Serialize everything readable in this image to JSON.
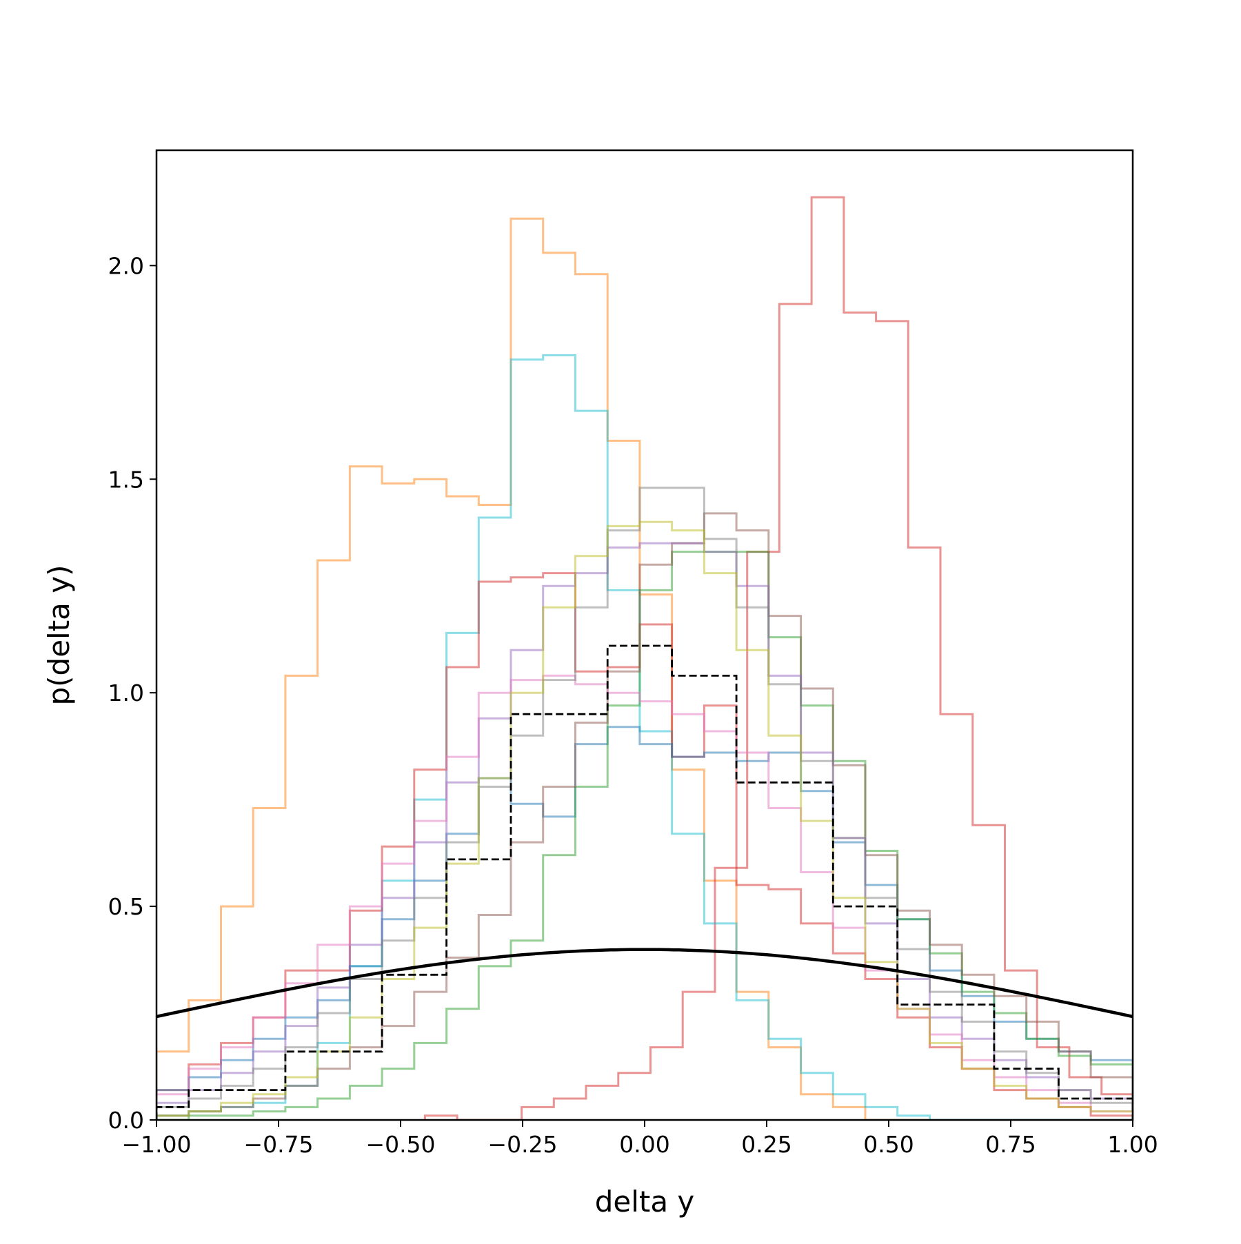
{
  "chart_data": {
    "type": "histogram-step",
    "xlabel": "delta y",
    "ylabel": "p(delta y)",
    "xlim": [
      -1.0,
      1.0
    ],
    "ylim": [
      0.0,
      2.27
    ],
    "grid": false,
    "legend": "none",
    "xticks": [
      -1.0,
      -0.75,
      -0.5,
      -0.25,
      0.0,
      0.25,
      0.5,
      0.75,
      1.0
    ],
    "xtick_labels": [
      "−1.00",
      "−0.75",
      "−0.50",
      "−0.25",
      "0.00",
      "0.25",
      "0.50",
      "0.75",
      "1.00"
    ],
    "yticks": [
      0.0,
      0.5,
      1.0,
      1.5,
      2.0
    ],
    "ytick_labels": [
      "0.0",
      "0.5",
      "1.0",
      "1.5",
      "2.0"
    ],
    "series": [
      {
        "color": "#ff7f0e",
        "style": "solid",
        "edges": [
          -1.0,
          -0.934,
          -0.868,
          -0.802,
          -0.736,
          -0.67,
          -0.604,
          -0.538,
          -0.472,
          -0.406,
          -0.34,
          -0.274,
          -0.208,
          -0.142,
          -0.076,
          -0.01,
          0.056,
          0.122,
          0.188,
          0.254,
          0.32,
          0.386,
          0.452,
          0.518,
          0.584
        ],
        "values": [
          0.16,
          0.28,
          0.5,
          0.73,
          1.04,
          1.31,
          1.53,
          1.49,
          1.5,
          1.46,
          1.44,
          2.11,
          2.03,
          1.98,
          1.59,
          1.23,
          0.82,
          0.56,
          0.3,
          0.17,
          0.06,
          0.03,
          0.0,
          0.0
        ]
      },
      {
        "color": "#d62728",
        "style": "solid",
        "edges": [
          -0.45,
          -0.384,
          -0.318,
          -0.252,
          -0.186,
          -0.12,
          -0.054,
          0.012,
          0.078,
          0.144,
          0.21,
          0.276,
          0.342,
          0.408,
          0.474,
          0.54,
          0.606,
          0.672,
          0.738,
          0.804,
          0.87,
          0.936,
          1.0
        ],
        "values": [
          0.01,
          0.0,
          0.0,
          0.03,
          0.05,
          0.08,
          0.11,
          0.17,
          0.3,
          0.59,
          1.33,
          1.91,
          2.16,
          1.89,
          1.87,
          1.34,
          0.95,
          0.69,
          0.35,
          0.17,
          0.1,
          0.06
        ]
      },
      {
        "color": "#17becf",
        "style": "solid",
        "edges": [
          -1.0,
          -0.934,
          -0.868,
          -0.802,
          -0.736,
          -0.67,
          -0.604,
          -0.538,
          -0.472,
          -0.406,
          -0.34,
          -0.274,
          -0.208,
          -0.142,
          -0.076,
          -0.01,
          0.056,
          0.122,
          0.188,
          0.254,
          0.32,
          0.386,
          0.452,
          0.518,
          0.584,
          0.65,
          0.716,
          0.782,
          0.848,
          0.914,
          1.0
        ],
        "values": [
          0.01,
          0.02,
          0.03,
          0.04,
          0.08,
          0.18,
          0.36,
          0.56,
          0.75,
          1.14,
          1.41,
          1.78,
          1.79,
          1.66,
          1.24,
          0.91,
          0.67,
          0.46,
          0.28,
          0.19,
          0.11,
          0.06,
          0.03,
          0.01,
          0.0,
          0.0,
          0.0,
          0.0,
          0.0,
          0.0
        ]
      },
      {
        "color": "#d62728",
        "style": "solid",
        "edges": [
          -1.0,
          -0.934,
          -0.868,
          -0.802,
          -0.736,
          -0.67,
          -0.604,
          -0.538,
          -0.472,
          -0.406,
          -0.34,
          -0.274,
          -0.208,
          -0.142,
          -0.076,
          -0.01,
          0.056,
          0.122,
          0.188,
          0.254,
          0.32,
          0.386,
          0.452,
          0.518,
          0.584,
          0.65,
          0.716,
          0.782,
          0.848,
          0.914,
          1.0
        ],
        "values": [
          0.07,
          0.13,
          0.18,
          0.24,
          0.35,
          0.35,
          0.49,
          0.64,
          0.82,
          1.06,
          1.26,
          1.27,
          1.28,
          1.05,
          1.06,
          1.16,
          0.85,
          0.97,
          0.55,
          0.54,
          0.46,
          0.39,
          0.33,
          0.24,
          0.17,
          0.12,
          0.07,
          0.05,
          0.03,
          0.01
        ]
      },
      {
        "color": "#1f77b4",
        "style": "solid",
        "edges": [
          -1.0,
          -0.934,
          -0.868,
          -0.802,
          -0.736,
          -0.67,
          -0.604,
          -0.538,
          -0.472,
          -0.406,
          -0.34,
          -0.274,
          -0.208,
          -0.142,
          -0.076,
          -0.01,
          0.056,
          0.122,
          0.188,
          0.254,
          0.32,
          0.386,
          0.452,
          0.518,
          0.584,
          0.65,
          0.716,
          0.782,
          0.848,
          0.914,
          1.0
        ],
        "values": [
          0.07,
          0.1,
          0.14,
          0.19,
          0.24,
          0.28,
          0.36,
          0.47,
          0.56,
          0.67,
          0.8,
          0.74,
          0.71,
          0.88,
          0.92,
          0.88,
          0.85,
          0.86,
          0.84,
          0.86,
          0.77,
          0.65,
          0.55,
          0.47,
          0.35,
          0.29,
          0.23,
          0.19,
          0.16,
          0.14
        ]
      },
      {
        "color": "#2ca02c",
        "style": "solid",
        "edges": [
          -1.0,
          -0.934,
          -0.868,
          -0.802,
          -0.736,
          -0.67,
          -0.604,
          -0.538,
          -0.472,
          -0.406,
          -0.34,
          -0.274,
          -0.208,
          -0.142,
          -0.076,
          -0.01,
          0.056,
          0.122,
          0.188,
          0.254,
          0.32,
          0.386,
          0.452,
          0.518,
          0.584,
          0.65,
          0.716,
          0.782,
          0.848,
          0.914,
          1.0
        ],
        "values": [
          0.0,
          0.01,
          0.01,
          0.02,
          0.03,
          0.05,
          0.08,
          0.12,
          0.18,
          0.26,
          0.36,
          0.42,
          0.62,
          0.78,
          0.97,
          1.24,
          1.33,
          1.33,
          1.33,
          1.13,
          0.97,
          0.84,
          0.63,
          0.47,
          0.39,
          0.3,
          0.25,
          0.19,
          0.15,
          0.13
        ]
      },
      {
        "color": "#8c564b",
        "style": "solid",
        "edges": [
          -1.0,
          -0.934,
          -0.868,
          -0.802,
          -0.736,
          -0.67,
          -0.604,
          -0.538,
          -0.472,
          -0.406,
          -0.34,
          -0.274,
          -0.208,
          -0.142,
          -0.076,
          -0.01,
          0.056,
          0.122,
          0.188,
          0.254,
          0.32,
          0.386,
          0.452,
          0.518,
          0.584,
          0.65,
          0.716,
          0.782,
          0.848,
          0.914,
          1.0
        ],
        "values": [
          0.01,
          0.02,
          0.03,
          0.05,
          0.08,
          0.12,
          0.17,
          0.22,
          0.3,
          0.38,
          0.48,
          0.65,
          0.78,
          0.93,
          1.05,
          1.3,
          1.35,
          1.42,
          1.38,
          1.18,
          1.01,
          0.83,
          0.62,
          0.49,
          0.41,
          0.34,
          0.29,
          0.23,
          0.16,
          0.1
        ]
      },
      {
        "color": "#9467bd",
        "style": "solid",
        "edges": [
          -1.0,
          -0.934,
          -0.868,
          -0.802,
          -0.736,
          -0.67,
          -0.604,
          -0.538,
          -0.472,
          -0.406,
          -0.34,
          -0.274,
          -0.208,
          -0.142,
          -0.076,
          -0.01,
          0.056,
          0.122,
          0.188,
          0.254,
          0.32,
          0.386,
          0.452,
          0.518,
          0.584,
          0.65,
          0.716,
          0.782,
          0.848,
          0.914,
          1.0
        ],
        "values": [
          0.04,
          0.07,
          0.11,
          0.16,
          0.22,
          0.31,
          0.41,
          0.52,
          0.65,
          0.79,
          0.94,
          1.1,
          1.25,
          1.28,
          1.34,
          1.35,
          1.35,
          1.33,
          1.25,
          1.04,
          0.86,
          0.66,
          0.46,
          0.33,
          0.24,
          0.19,
          0.14,
          0.1,
          0.07,
          0.05
        ]
      },
      {
        "color": "#e377c2",
        "style": "solid",
        "edges": [
          -1.0,
          -0.934,
          -0.868,
          -0.802,
          -0.736,
          -0.67,
          -0.604,
          -0.538,
          -0.472,
          -0.406,
          -0.34,
          -0.274,
          -0.208,
          -0.142,
          -0.076,
          -0.01,
          0.056,
          0.122,
          0.188,
          0.254,
          0.32,
          0.386,
          0.452,
          0.518,
          0.584,
          0.65,
          0.716,
          0.782,
          0.848,
          0.914,
          1.0
        ],
        "values": [
          0.06,
          0.12,
          0.17,
          0.24,
          0.32,
          0.41,
          0.5,
          0.6,
          0.7,
          0.85,
          1.0,
          1.03,
          1.04,
          1.02,
          1.0,
          0.98,
          0.95,
          0.91,
          0.86,
          0.73,
          0.58,
          0.45,
          0.35,
          0.26,
          0.2,
          0.14,
          0.1,
          0.07,
          0.04,
          0.02
        ]
      },
      {
        "color": "#7f7f7f",
        "style": "solid",
        "edges": [
          -1.0,
          -0.934,
          -0.868,
          -0.802,
          -0.736,
          -0.67,
          -0.604,
          -0.538,
          -0.472,
          -0.406,
          -0.34,
          -0.274,
          -0.208,
          -0.142,
          -0.076,
          -0.01,
          0.056,
          0.122,
          0.188,
          0.254,
          0.32,
          0.386,
          0.452,
          0.518,
          0.584,
          0.65,
          0.716,
          0.782,
          0.848,
          0.914,
          1.0
        ],
        "values": [
          0.03,
          0.05,
          0.08,
          0.12,
          0.17,
          0.25,
          0.33,
          0.42,
          0.52,
          0.65,
          0.78,
          0.9,
          1.03,
          1.2,
          1.38,
          1.48,
          1.48,
          1.36,
          1.2,
          1.02,
          0.84,
          0.66,
          0.52,
          0.4,
          0.3,
          0.23,
          0.16,
          0.11,
          0.07,
          0.04
        ]
      },
      {
        "color": "#bcbd22",
        "style": "solid",
        "edges": [
          -1.0,
          -0.934,
          -0.868,
          -0.802,
          -0.736,
          -0.67,
          -0.604,
          -0.538,
          -0.472,
          -0.406,
          -0.34,
          -0.274,
          -0.208,
          -0.142,
          -0.076,
          -0.01,
          0.056,
          0.122,
          0.188,
          0.254,
          0.32,
          0.386,
          0.452,
          0.518,
          0.584,
          0.65,
          0.716,
          0.782,
          0.848,
          0.914,
          1.0
        ],
        "values": [
          0.01,
          0.02,
          0.04,
          0.06,
          0.1,
          0.16,
          0.24,
          0.33,
          0.45,
          0.6,
          0.8,
          1.0,
          1.2,
          1.32,
          1.39,
          1.4,
          1.38,
          1.28,
          1.1,
          0.9,
          0.7,
          0.52,
          0.37,
          0.26,
          0.18,
          0.12,
          0.08,
          0.05,
          0.03,
          0.02
        ]
      },
      {
        "color": "#000000",
        "style": "dashed",
        "edges": [
          -1.0,
          -0.934,
          -0.868,
          -0.802,
          -0.736,
          -0.67,
          -0.604,
          -0.538,
          -0.472,
          -0.406,
          -0.34,
          -0.274,
          -0.208,
          -0.142,
          -0.076,
          -0.01,
          0.056,
          0.122,
          0.188,
          0.254,
          0.32,
          0.386,
          0.452,
          0.518,
          0.584,
          0.65,
          0.716,
          0.782,
          0.848,
          0.914,
          1.0
        ],
        "values": [
          0.03,
          0.07,
          0.07,
          0.07,
          0.16,
          0.16,
          0.16,
          0.34,
          0.34,
          0.61,
          0.61,
          0.95,
          0.95,
          0.95,
          1.11,
          1.11,
          1.04,
          1.04,
          0.79,
          0.79,
          0.79,
          0.5,
          0.5,
          0.27,
          0.27,
          0.27,
          0.12,
          0.12,
          0.05,
          0.05
        ]
      }
    ],
    "curve": {
      "color": "#000000",
      "description_of_shape": "normal",
      "mean": 0.0,
      "std": 1.0
    }
  }
}
